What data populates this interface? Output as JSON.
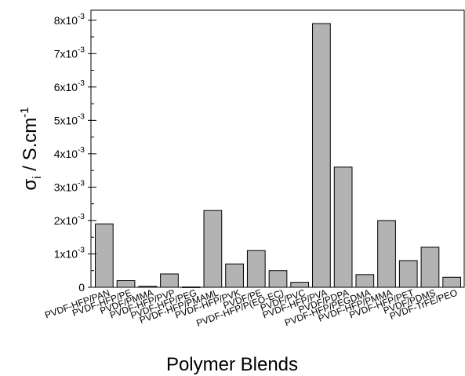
{
  "chart_data": {
    "type": "bar",
    "xlabel": "Polymer Blends",
    "ylabel_symbol": "σ",
    "ylabel_subscript": "i",
    "ylabel_unit": " / S.cm",
    "ylabel_unit_exponent": "-1",
    "ylim": [
      0,
      0.0083
    ],
    "yticks": [
      0,
      0.001,
      0.002,
      0.003,
      0.004,
      0.005,
      0.006,
      0.007,
      0.008
    ],
    "ytick_labels": [
      {
        "mantissa": "0",
        "exponent": ""
      },
      {
        "mantissa": "1x10",
        "exponent": "-3"
      },
      {
        "mantissa": "2x10",
        "exponent": "-3"
      },
      {
        "mantissa": "3x10",
        "exponent": "-3"
      },
      {
        "mantissa": "4x10",
        "exponent": "-3"
      },
      {
        "mantissa": "5x10",
        "exponent": "-3"
      },
      {
        "mantissa": "6x10",
        "exponent": "-3"
      },
      {
        "mantissa": "7x10",
        "exponent": "-3"
      },
      {
        "mantissa": "8x10",
        "exponent": "-3"
      }
    ],
    "categories": [
      "PVDF-HFP/PAN",
      "PVDF-HFP/PE",
      "PVDF/PMMA",
      "PVDF-HFP/PVP",
      "PVDF-HFP/PEG",
      "PVDF-HFP/PMAML",
      "PVDF-HFP/PVK",
      "PVDF/PE",
      "PVDF-HFP/P(EO-EC)",
      "PVDF/PVC",
      "PVDF-HFP/PVA",
      "PVDF/PDPA",
      "PVDF-HFP/PEGDMA",
      "PVDF-HFP/PMMA",
      "PVDF-HFP/PET",
      "PVDF/PDMS",
      "PVDF-TrFE/PEO"
    ],
    "values": [
      0.0019,
      0.0002,
      3e-05,
      0.0004,
      1e-05,
      0.0023,
      0.0007,
      0.0011,
      0.0005,
      0.00015,
      0.0079,
      0.0036,
      0.00038,
      0.002,
      0.0008,
      0.0012,
      0.0003
    ],
    "colors": {
      "bar_fill": "#b3b3b3",
      "bar_stroke": "#000000",
      "axis": "#000000"
    },
    "grid": false,
    "legend": "none"
  }
}
